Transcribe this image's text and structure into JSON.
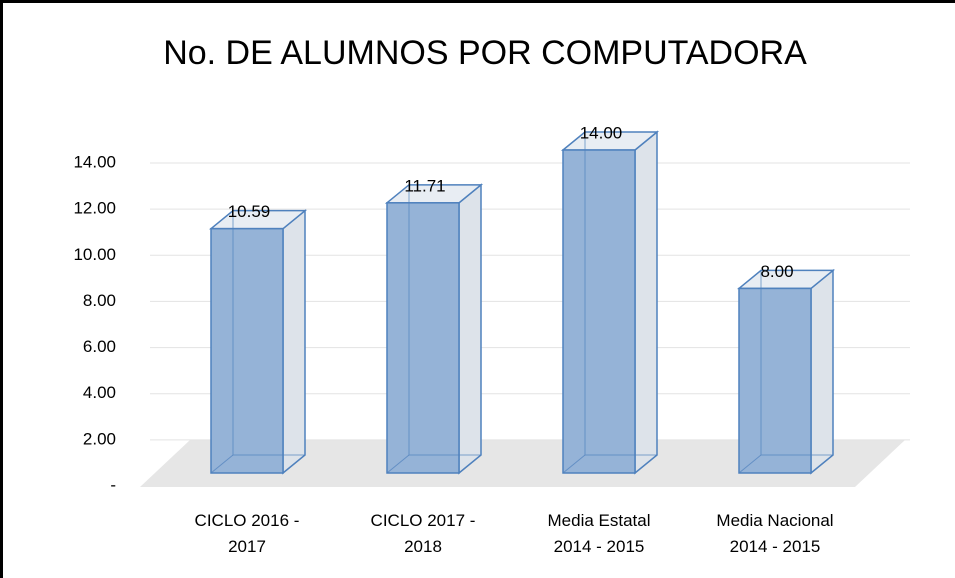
{
  "chart_data": {
    "type": "bar3d",
    "title": "No. DE ALUMNOS POR COMPUTADORA",
    "categories": [
      "CICLO 2016 - 2017",
      "CICLO 2017 - 2018",
      "Media Estatal 2014 - 2015",
      "Media Nacional 2014 - 2015"
    ],
    "values": [
      10.59,
      11.71,
      14,
      8
    ],
    "value_labels": [
      "10.59",
      "11.71",
      "14.00",
      "8.00"
    ],
    "color": "#95b3d7",
    "ylim": [
      0,
      14
    ],
    "yticks": [
      {
        "value": 0,
        "label": "-"
      },
      {
        "value": 2,
        "label": "2.00"
      },
      {
        "value": 4,
        "label": "4.00"
      },
      {
        "value": 6,
        "label": "6.00"
      },
      {
        "value": 8,
        "label": "8.00"
      },
      {
        "value": 10,
        "label": "10.00"
      },
      {
        "value": 12,
        "label": "12.00"
      },
      {
        "value": 14,
        "label": "14.00"
      }
    ],
    "grid": true
  }
}
